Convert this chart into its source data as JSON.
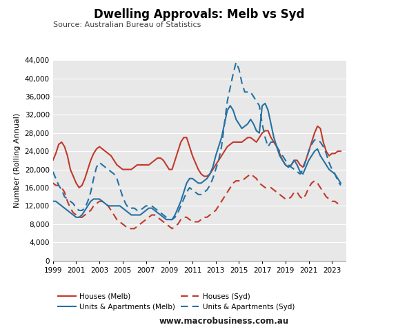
{
  "title": "Dwelling Approvals: Melb vs Syd",
  "source": "Source: Australian Bureau of Statistics",
  "ylabel": "Number (Rolling Annual)",
  "website": "www.macrobusiness.com.au",
  "background_color": "#e8e8e8",
  "ylim": [
    0,
    44000
  ],
  "yticks": [
    0,
    4000,
    8000,
    12000,
    16000,
    20000,
    24000,
    28000,
    32000,
    36000,
    40000,
    44000
  ],
  "colors": {
    "melb": "#c0392b",
    "syd": "#2471a3"
  },
  "series": {
    "houses_melb": {
      "years": [
        1999.0,
        1999.25,
        1999.5,
        1999.75,
        2000.0,
        2000.25,
        2000.5,
        2000.75,
        2001.0,
        2001.25,
        2001.5,
        2001.75,
        2002.0,
        2002.25,
        2002.5,
        2002.75,
        2003.0,
        2003.25,
        2003.5,
        2003.75,
        2004.0,
        2004.25,
        2004.5,
        2004.75,
        2005.0,
        2005.25,
        2005.5,
        2005.75,
        2006.0,
        2006.25,
        2006.5,
        2006.75,
        2007.0,
        2007.25,
        2007.5,
        2007.75,
        2008.0,
        2008.25,
        2008.5,
        2008.75,
        2009.0,
        2009.25,
        2009.5,
        2009.75,
        2010.0,
        2010.25,
        2010.5,
        2010.75,
        2011.0,
        2011.25,
        2011.5,
        2011.75,
        2012.0,
        2012.25,
        2012.5,
        2012.75,
        2013.0,
        2013.25,
        2013.5,
        2013.75,
        2014.0,
        2014.25,
        2014.5,
        2014.75,
        2015.0,
        2015.25,
        2015.5,
        2015.75,
        2016.0,
        2016.25,
        2016.5,
        2016.75,
        2017.0,
        2017.25,
        2017.5,
        2017.75,
        2018.0,
        2018.25,
        2018.5,
        2018.75,
        2019.0,
        2019.25,
        2019.5,
        2019.75,
        2020.0,
        2020.25,
        2020.5,
        2020.75,
        2021.0,
        2021.25,
        2021.5,
        2021.75,
        2022.0,
        2022.25,
        2022.5,
        2022.75,
        2023.0,
        2023.25,
        2023.5,
        2023.75
      ],
      "values": [
        22000,
        23500,
        25500,
        26000,
        25000,
        23000,
        20000,
        18500,
        17000,
        16000,
        16500,
        18000,
        20000,
        22000,
        23500,
        24500,
        25000,
        24500,
        24000,
        23500,
        23000,
        22000,
        21000,
        20500,
        20000,
        20000,
        20000,
        20000,
        20500,
        21000,
        21000,
        21000,
        21000,
        21000,
        21500,
        22000,
        22500,
        22500,
        22000,
        21000,
        20000,
        20000,
        22000,
        24000,
        26000,
        27000,
        27000,
        25000,
        23000,
        21500,
        20000,
        19000,
        18500,
        18500,
        19000,
        20000,
        21000,
        22000,
        23000,
        24000,
        25000,
        25500,
        26000,
        26000,
        26000,
        26000,
        26500,
        27000,
        27000,
        26500,
        26000,
        27000,
        28000,
        28500,
        28500,
        27000,
        26000,
        25000,
        23500,
        22000,
        21000,
        20500,
        21000,
        22000,
        22000,
        21000,
        20500,
        22000,
        24000,
        26000,
        28000,
        29500,
        29000,
        26000,
        24000,
        23000,
        23500,
        23500,
        24000,
        24000
      ]
    },
    "houses_syd": {
      "years": [
        1999.0,
        1999.25,
        1999.5,
        1999.75,
        2000.0,
        2000.25,
        2000.5,
        2000.75,
        2001.0,
        2001.25,
        2001.5,
        2001.75,
        2002.0,
        2002.25,
        2002.5,
        2002.75,
        2003.0,
        2003.25,
        2003.5,
        2003.75,
        2004.0,
        2004.25,
        2004.5,
        2004.75,
        2005.0,
        2005.25,
        2005.5,
        2005.75,
        2006.0,
        2006.25,
        2006.5,
        2006.75,
        2007.0,
        2007.25,
        2007.5,
        2007.75,
        2008.0,
        2008.25,
        2008.5,
        2008.75,
        2009.0,
        2009.25,
        2009.5,
        2009.75,
        2010.0,
        2010.25,
        2010.5,
        2010.75,
        2011.0,
        2011.25,
        2011.5,
        2011.75,
        2012.0,
        2012.25,
        2012.5,
        2012.75,
        2013.0,
        2013.25,
        2013.5,
        2013.75,
        2014.0,
        2014.25,
        2014.5,
        2014.75,
        2015.0,
        2015.25,
        2015.5,
        2015.75,
        2016.0,
        2016.25,
        2016.5,
        2016.75,
        2017.0,
        2017.25,
        2017.5,
        2017.75,
        2018.0,
        2018.25,
        2018.5,
        2018.75,
        2019.0,
        2019.25,
        2019.5,
        2019.75,
        2020.0,
        2020.25,
        2020.5,
        2020.75,
        2021.0,
        2021.25,
        2021.5,
        2021.75,
        2022.0,
        2022.25,
        2022.5,
        2022.75,
        2023.0,
        2023.25,
        2023.5,
        2023.75
      ],
      "values": [
        17000,
        16500,
        16500,
        16000,
        15000,
        13000,
        11500,
        10500,
        10000,
        9500,
        9500,
        10000,
        10500,
        11000,
        12000,
        12500,
        13000,
        13000,
        12500,
        12000,
        11000,
        10000,
        9000,
        8500,
        8000,
        7500,
        7000,
        7000,
        7000,
        7500,
        8000,
        8500,
        9000,
        9500,
        10000,
        10000,
        9500,
        9000,
        8500,
        8000,
        7500,
        7000,
        7500,
        8000,
        9000,
        9500,
        9500,
        9000,
        8500,
        8500,
        8500,
        9000,
        9500,
        9500,
        10000,
        10500,
        11000,
        12000,
        13000,
        14000,
        15000,
        16000,
        17000,
        17500,
        17500,
        17500,
        18000,
        18500,
        19000,
        18500,
        18000,
        17000,
        16500,
        16000,
        16000,
        16000,
        15500,
        15000,
        14500,
        14000,
        13500,
        13500,
        14000,
        15000,
        15000,
        14000,
        13500,
        14500,
        16000,
        17000,
        17500,
        17000,
        16000,
        15000,
        14000,
        13500,
        13000,
        13000,
        12500,
        12500
      ]
    },
    "units_melb": {
      "years": [
        1999.0,
        1999.25,
        1999.5,
        1999.75,
        2000.0,
        2000.25,
        2000.5,
        2000.75,
        2001.0,
        2001.25,
        2001.5,
        2001.75,
        2002.0,
        2002.25,
        2002.5,
        2002.75,
        2003.0,
        2003.25,
        2003.5,
        2003.75,
        2004.0,
        2004.25,
        2004.5,
        2004.75,
        2005.0,
        2005.25,
        2005.5,
        2005.75,
        2006.0,
        2006.25,
        2006.5,
        2006.75,
        2007.0,
        2007.25,
        2007.5,
        2007.75,
        2008.0,
        2008.25,
        2008.5,
        2008.75,
        2009.0,
        2009.25,
        2009.5,
        2009.75,
        2010.0,
        2010.25,
        2010.5,
        2010.75,
        2011.0,
        2011.25,
        2011.5,
        2011.75,
        2012.0,
        2012.25,
        2012.5,
        2012.75,
        2013.0,
        2013.25,
        2013.5,
        2013.75,
        2014.0,
        2014.25,
        2014.5,
        2014.75,
        2015.0,
        2015.25,
        2015.5,
        2015.75,
        2016.0,
        2016.25,
        2016.5,
        2016.75,
        2017.0,
        2017.25,
        2017.5,
        2017.75,
        2018.0,
        2018.25,
        2018.5,
        2018.75,
        2019.0,
        2019.25,
        2019.5,
        2019.75,
        2020.0,
        2020.25,
        2020.5,
        2020.75,
        2021.0,
        2021.25,
        2021.5,
        2021.75,
        2022.0,
        2022.25,
        2022.5,
        2022.75,
        2023.0,
        2023.25,
        2023.5,
        2023.75
      ],
      "values": [
        13000,
        13000,
        12500,
        12000,
        11500,
        11000,
        10500,
        10000,
        9500,
        9500,
        10000,
        11000,
        12000,
        13000,
        13500,
        13500,
        13500,
        13000,
        12500,
        12000,
        12000,
        12000,
        12000,
        12000,
        11500,
        11000,
        10500,
        10000,
        10000,
        10000,
        10000,
        10500,
        11000,
        11500,
        11500,
        11000,
        10500,
        10000,
        9500,
        9000,
        9000,
        9000,
        10000,
        11500,
        13000,
        15000,
        17000,
        18000,
        18000,
        17500,
        17000,
        17000,
        17500,
        18000,
        19000,
        20500,
        23000,
        25000,
        27000,
        30000,
        33000,
        34000,
        33000,
        31000,
        30000,
        29000,
        29500,
        30000,
        31000,
        30000,
        28500,
        28000,
        34000,
        34500,
        33000,
        30000,
        27000,
        25000,
        23000,
        22000,
        21000,
        20500,
        21000,
        22000,
        21000,
        19500,
        19000,
        20500,
        22000,
        23000,
        24000,
        24500,
        23000,
        22000,
        21000,
        20000,
        19500,
        19000,
        18000,
        17000
      ]
    },
    "units_syd": {
      "years": [
        1999.0,
        1999.25,
        1999.5,
        1999.75,
        2000.0,
        2000.25,
        2000.5,
        2000.75,
        2001.0,
        2001.25,
        2001.5,
        2001.75,
        2002.0,
        2002.25,
        2002.5,
        2002.75,
        2003.0,
        2003.25,
        2003.5,
        2003.75,
        2004.0,
        2004.25,
        2004.5,
        2004.75,
        2005.0,
        2005.25,
        2005.5,
        2005.75,
        2006.0,
        2006.25,
        2006.5,
        2006.75,
        2007.0,
        2007.25,
        2007.5,
        2007.75,
        2008.0,
        2008.25,
        2008.5,
        2008.75,
        2009.0,
        2009.25,
        2009.5,
        2009.75,
        2010.0,
        2010.25,
        2010.5,
        2010.75,
        2011.0,
        2011.25,
        2011.5,
        2011.75,
        2012.0,
        2012.25,
        2012.5,
        2012.75,
        2013.0,
        2013.25,
        2013.5,
        2013.75,
        2014.0,
        2014.25,
        2014.5,
        2014.75,
        2015.0,
        2015.25,
        2015.5,
        2015.75,
        2016.0,
        2016.25,
        2016.5,
        2016.75,
        2017.0,
        2017.25,
        2017.5,
        2017.75,
        2018.0,
        2018.25,
        2018.5,
        2018.75,
        2019.0,
        2019.25,
        2019.5,
        2019.75,
        2020.0,
        2020.25,
        2020.5,
        2020.75,
        2021.0,
        2021.25,
        2021.5,
        2021.75,
        2022.0,
        2022.25,
        2022.5,
        2022.75,
        2023.0,
        2023.25,
        2023.5,
        2023.75
      ],
      "values": [
        19500,
        18000,
        16500,
        15500,
        14000,
        13500,
        13000,
        12500,
        11500,
        11000,
        11000,
        11500,
        13000,
        15000,
        18000,
        20500,
        21500,
        21000,
        20500,
        20000,
        19500,
        19000,
        18000,
        16000,
        14000,
        12500,
        11500,
        11500,
        11500,
        11000,
        11000,
        11500,
        12000,
        12000,
        12000,
        11500,
        11000,
        10500,
        10000,
        9500,
        9000,
        9000,
        9500,
        10500,
        12000,
        13500,
        15000,
        16000,
        15500,
        15000,
        14500,
        14500,
        15000,
        15500,
        16500,
        18000,
        20000,
        22000,
        25000,
        30000,
        35000,
        38000,
        41000,
        43500,
        42000,
        39000,
        37000,
        37000,
        37000,
        36000,
        35000,
        34000,
        30000,
        27000,
        25000,
        26000,
        26000,
        25000,
        24000,
        23000,
        22000,
        21000,
        20500,
        20000,
        19500,
        19000,
        20000,
        22000,
        24000,
        25500,
        26500,
        26500,
        26000,
        25000,
        23500,
        21500,
        20000,
        19000,
        17500,
        16500
      ]
    }
  }
}
